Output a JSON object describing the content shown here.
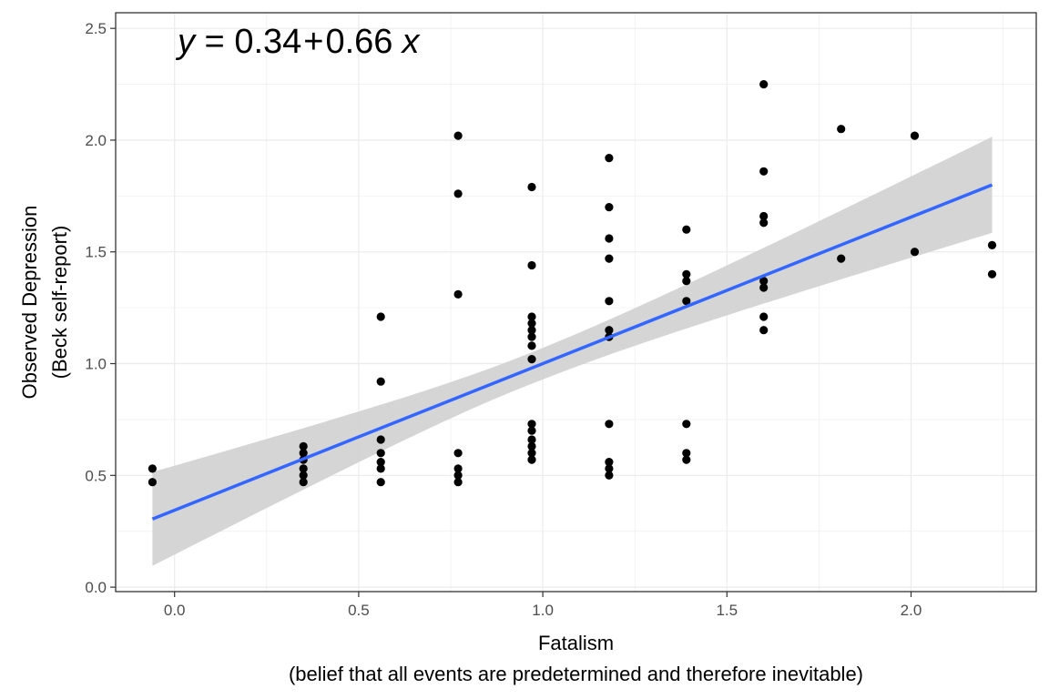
{
  "chart_data": {
    "type": "scatter",
    "title": "",
    "xlabel": "Fatalism",
    "xlabel_sub": "(belief that all events are predetermined and therefore inevitable)",
    "ylabel": "Observed Depression",
    "ylabel_sub": "(Beck self-report)",
    "xlim": [
      -0.16,
      2.34
    ],
    "ylim": [
      -0.02,
      2.57
    ],
    "x_ticks": [
      0.0,
      0.5,
      1.0,
      1.5,
      2.0
    ],
    "x_tick_labels": [
      "0.0",
      "0.5",
      "1.0",
      "1.5",
      "2.0"
    ],
    "y_ticks": [
      0.0,
      0.5,
      1.0,
      1.5,
      2.0,
      2.5
    ],
    "y_tick_labels": [
      "0.0",
      "0.5",
      "1.0",
      "1.5",
      "2.0",
      "2.5"
    ],
    "grid": true,
    "equation": {
      "y": "y",
      "eq": " = ",
      "a": "0.34",
      "op": "+",
      "b": "0.66",
      "x": "x"
    },
    "fit": {
      "x": [
        -0.06,
        2.22
      ],
      "y": [
        0.305,
        1.8
      ],
      "ci_upper": [
        0.53,
        2.02
      ],
      "ci_lower": [
        0.11,
        1.59
      ],
      "color": "#3366ff",
      "band_color": "#d3d3d3"
    },
    "point_color": "#000000",
    "points": [
      [
        -0.06,
        0.53
      ],
      [
        -0.06,
        0.47
      ],
      [
        0.35,
        0.63
      ],
      [
        0.35,
        0.6
      ],
      [
        0.35,
        0.57
      ],
      [
        0.35,
        0.53
      ],
      [
        0.35,
        0.5
      ],
      [
        0.35,
        0.47
      ],
      [
        0.56,
        1.21
      ],
      [
        0.56,
        0.92
      ],
      [
        0.56,
        0.66
      ],
      [
        0.56,
        0.6
      ],
      [
        0.56,
        0.56
      ],
      [
        0.56,
        0.53
      ],
      [
        0.56,
        0.47
      ],
      [
        0.77,
        2.02
      ],
      [
        0.77,
        1.76
      ],
      [
        0.77,
        1.31
      ],
      [
        0.77,
        0.6
      ],
      [
        0.77,
        0.53
      ],
      [
        0.77,
        0.5
      ],
      [
        0.77,
        0.47
      ],
      [
        0.97,
        1.79
      ],
      [
        0.97,
        1.44
      ],
      [
        0.97,
        1.21
      ],
      [
        0.97,
        1.18
      ],
      [
        0.97,
        1.15
      ],
      [
        0.97,
        1.12
      ],
      [
        0.97,
        1.08
      ],
      [
        0.97,
        1.02
      ],
      [
        0.97,
        0.73
      ],
      [
        0.97,
        0.7
      ],
      [
        0.97,
        0.66
      ],
      [
        0.97,
        0.63
      ],
      [
        0.97,
        0.6
      ],
      [
        0.97,
        0.57
      ],
      [
        1.18,
        1.92
      ],
      [
        1.18,
        1.7
      ],
      [
        1.18,
        1.56
      ],
      [
        1.18,
        1.47
      ],
      [
        1.18,
        1.28
      ],
      [
        1.18,
        1.15
      ],
      [
        1.18,
        1.12
      ],
      [
        1.18,
        0.73
      ],
      [
        1.18,
        0.56
      ],
      [
        1.18,
        0.53
      ],
      [
        1.18,
        0.5
      ],
      [
        1.39,
        1.6
      ],
      [
        1.39,
        1.4
      ],
      [
        1.39,
        1.37
      ],
      [
        1.39,
        1.28
      ],
      [
        1.39,
        0.73
      ],
      [
        1.39,
        0.6
      ],
      [
        1.39,
        0.57
      ],
      [
        1.6,
        2.25
      ],
      [
        1.6,
        1.86
      ],
      [
        1.6,
        1.66
      ],
      [
        1.6,
        1.63
      ],
      [
        1.6,
        1.37
      ],
      [
        1.6,
        1.34
      ],
      [
        1.6,
        1.21
      ],
      [
        1.6,
        1.15
      ],
      [
        1.81,
        2.05
      ],
      [
        1.81,
        1.47
      ],
      [
        2.01,
        2.02
      ],
      [
        2.01,
        1.5
      ],
      [
        2.22,
        1.53
      ],
      [
        2.22,
        1.4
      ]
    ]
  }
}
